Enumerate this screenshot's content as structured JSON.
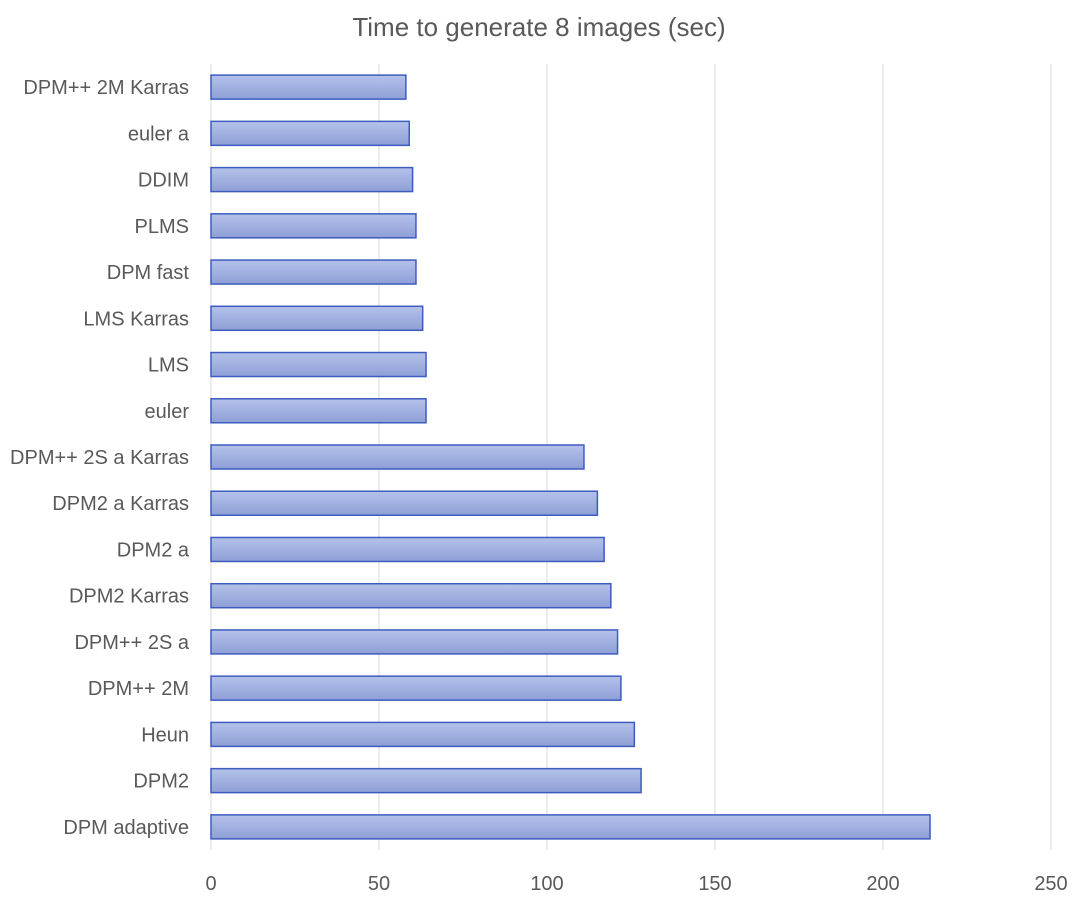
{
  "chart_data": {
    "type": "bar",
    "orientation": "horizontal",
    "title": "Time to generate 8 images (sec)",
    "xlabel": "",
    "ylabel": "",
    "categories": [
      "DPM++ 2M Karras",
      "euler a",
      "DDIM",
      "PLMS",
      "DPM fast",
      "LMS Karras",
      "LMS",
      "euler",
      "DPM++ 2S a Karras",
      "DPM2 a Karras",
      "DPM2 a",
      "DPM2 Karras",
      "DPM++ 2S a",
      "DPM++ 2M",
      "Heun",
      "DPM2",
      "DPM adaptive"
    ],
    "values": [
      58,
      59,
      60,
      61,
      61,
      63,
      64,
      64,
      111,
      115,
      117,
      119,
      121,
      122,
      126,
      128,
      214
    ],
    "xlim": [
      0,
      250
    ],
    "x_ticks": [
      0,
      50,
      100,
      150,
      200,
      250
    ],
    "x_tick_labels": [
      "0",
      "50",
      "100",
      "150",
      "200",
      "250"
    ],
    "grid": true,
    "legend": "none",
    "colors": {
      "bar_fill_top": "#b4c2ea",
      "bar_fill_bottom": "#8e9fd6",
      "bar_stroke": "#3d5cbf",
      "grid": "#d9d9d9",
      "text": "#595959"
    }
  }
}
